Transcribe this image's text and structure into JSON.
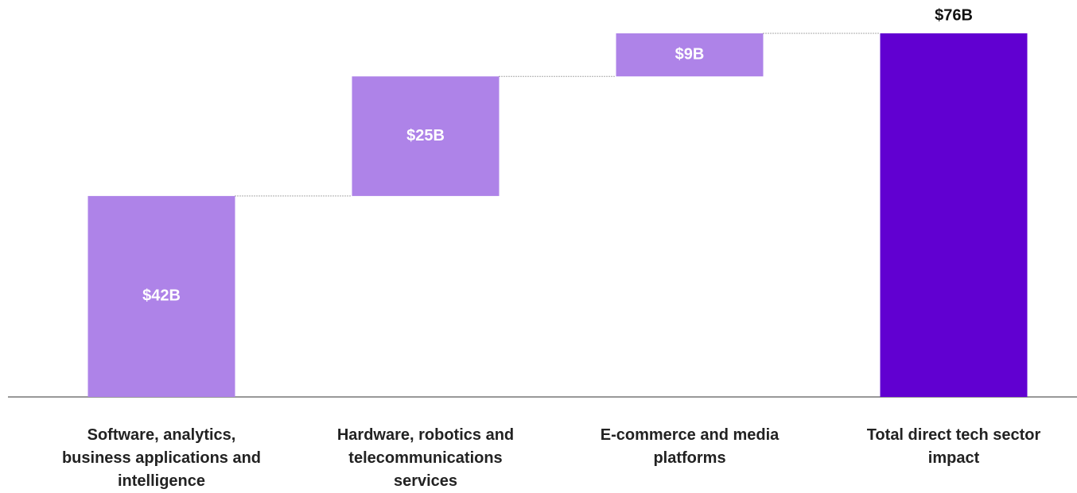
{
  "chart_data": {
    "type": "waterfall",
    "categories": [
      "Software, analytics, business applications and intelligence",
      "Hardware, robotics and telecommunications services",
      "E-commerce and media platforms",
      "Total direct tech sector impact"
    ],
    "values": [
      42,
      25,
      9,
      76
    ],
    "value_labels": [
      "$42B",
      "$25B",
      "$9B",
      "$76B"
    ],
    "is_total": [
      false,
      false,
      false,
      true
    ],
    "colors": [
      "#ae83e8",
      "#ae83e8",
      "#ae83e8",
      "#6100d1"
    ]
  }
}
